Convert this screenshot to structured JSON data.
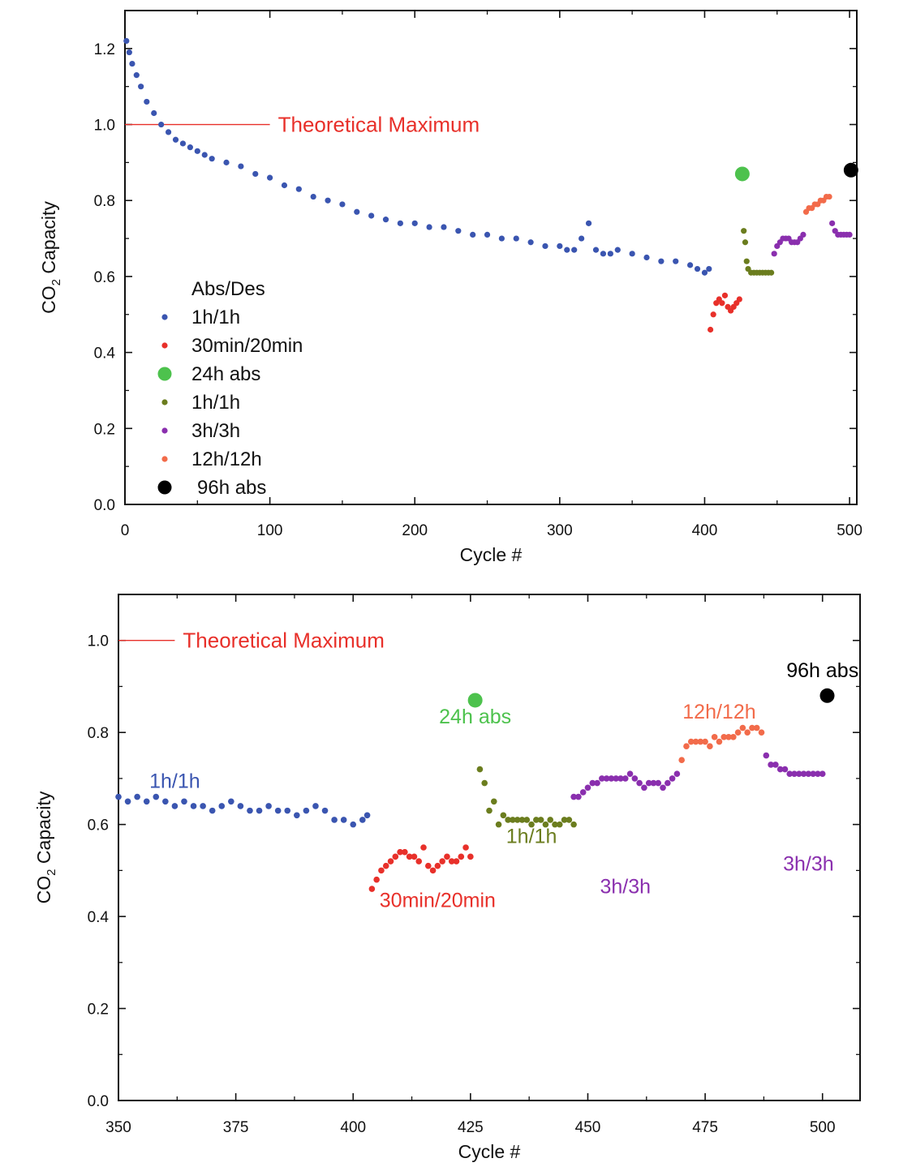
{
  "charts": [
    {
      "type": "scatter",
      "xlim": [
        0,
        505
      ],
      "ylim": [
        0,
        1.3
      ],
      "xticks": [
        0,
        100,
        200,
        300,
        400,
        500
      ],
      "xtick_labels": [
        "0",
        "100",
        "200",
        "300",
        "400",
        "500"
      ],
      "yticks": [
        0,
        0.2,
        0.4,
        0.6,
        0.8,
        1.0,
        1.2
      ],
      "ytick_labels": [
        "0.0",
        "0.2",
        "0.4",
        "0.6",
        "0.8",
        "1.0",
        "1.2"
      ],
      "xlabel": "Cycle #",
      "ylabel_main": "CO",
      "ylabel_sub": "2",
      "ylabel_rest": " Capacity",
      "reference_line": {
        "y": 1.0,
        "x_end": 100,
        "label": "Theoretical Maximum"
      },
      "legend": {
        "title": "Abs/Des",
        "placement": "lower-left",
        "entries": [
          {
            "label": "1h/1h",
            "color": "#3a55b0",
            "marker": "small"
          },
          {
            "label": "30min/20min",
            "color": "#e8302a",
            "marker": "small"
          },
          {
            "label": "24h abs",
            "color": "#4dc24d",
            "marker": "large"
          },
          {
            "label": "1h/1h",
            "color": "#6b7d1e",
            "marker": "small"
          },
          {
            "label": "3h/3h",
            "color": "#8a2fae",
            "marker": "small"
          },
          {
            "label": "12h/12h",
            "color": "#f26b4a",
            "marker": "small"
          },
          {
            "label": "96h abs",
            "color": "#000000",
            "marker": "large"
          }
        ]
      },
      "annotations": []
    },
    {
      "type": "scatter",
      "xlim": [
        350,
        508
      ],
      "ylim": [
        0,
        1.1
      ],
      "xticks": [
        350,
        375,
        400,
        425,
        450,
        475,
        500
      ],
      "xtick_labels": [
        "350",
        "375",
        "400",
        "425",
        "450",
        "475",
        "500"
      ],
      "yticks": [
        0,
        0.2,
        0.4,
        0.6,
        0.8,
        1.0
      ],
      "ytick_labels": [
        "0.0",
        "0.2",
        "0.4",
        "0.6",
        "0.8",
        "1.0"
      ],
      "xlabel": "Cycle #",
      "ylabel_main": "CO",
      "ylabel_sub": "2",
      "ylabel_rest": " Capacity",
      "reference_line": {
        "y": 1.0,
        "x_end": 362,
        "label": "Theoretical Maximum"
      },
      "legend": null,
      "annotations": [
        {
          "text": "1h/1h",
          "x": 362,
          "y": 0.68,
          "color": "#3a55b0"
        },
        {
          "text": "30min/20min",
          "x": 418,
          "y": 0.42,
          "color": "#e8302a"
        },
        {
          "text": "24h abs",
          "x": 426,
          "y": 0.82,
          "color": "#4dc24d"
        },
        {
          "text": "1h/1h",
          "x": 438,
          "y": 0.56,
          "color": "#6b7d1e"
        },
        {
          "text": "3h/3h",
          "x": 458,
          "y": 0.45,
          "color": "#8a2fae"
        },
        {
          "text": "12h/12h",
          "x": 478,
          "y": 0.83,
          "color": "#f26b4a"
        },
        {
          "text": "3h/3h",
          "x": 497,
          "y": 0.5,
          "color": "#8a2fae"
        },
        {
          "text": "96h abs",
          "x": 500,
          "y": 0.92,
          "color": "#000000"
        }
      ]
    }
  ],
  "chart_data": [
    {
      "type": "scatter",
      "xlabel": "Cycle #",
      "ylabel": "CO2 Capacity",
      "xlim": [
        0,
        505
      ],
      "ylim": [
        0,
        1.3
      ],
      "grid": false,
      "series": [
        {
          "name": "1h/1h",
          "color": "#3a55b0",
          "size": "small",
          "x": [
            1,
            3,
            5,
            8,
            11,
            15,
            20,
            25,
            30,
            35,
            40,
            45,
            50,
            55,
            60,
            70,
            80,
            90,
            100,
            110,
            120,
            130,
            140,
            150,
            160,
            170,
            180,
            190,
            200,
            210,
            220,
            230,
            240,
            250,
            260,
            270,
            280,
            290,
            300,
            305,
            310,
            315,
            320,
            325,
            330,
            335,
            340,
            350,
            360,
            370,
            380,
            390,
            395,
            400,
            403
          ],
          "y": [
            1.22,
            1.19,
            1.16,
            1.13,
            1.1,
            1.06,
            1.03,
            1.0,
            0.98,
            0.96,
            0.95,
            0.94,
            0.93,
            0.92,
            0.91,
            0.9,
            0.89,
            0.87,
            0.86,
            0.84,
            0.83,
            0.81,
            0.8,
            0.79,
            0.77,
            0.76,
            0.75,
            0.74,
            0.74,
            0.73,
            0.73,
            0.72,
            0.71,
            0.71,
            0.7,
            0.7,
            0.69,
            0.68,
            0.68,
            0.67,
            0.67,
            0.7,
            0.74,
            0.67,
            0.66,
            0.66,
            0.67,
            0.66,
            0.65,
            0.64,
            0.64,
            0.63,
            0.62,
            0.61,
            0.62
          ]
        },
        {
          "name": "30min/20min",
          "color": "#e8302a",
          "size": "small",
          "x": [
            404,
            406,
            408,
            410,
            412,
            414,
            416,
            418,
            420,
            422,
            424
          ],
          "y": [
            0.46,
            0.5,
            0.53,
            0.54,
            0.53,
            0.55,
            0.52,
            0.51,
            0.52,
            0.53,
            0.54
          ]
        },
        {
          "name": "24h abs",
          "color": "#4dc24d",
          "size": "large",
          "x": [
            426
          ],
          "y": [
            0.87
          ]
        },
        {
          "name": "1h/1h",
          "color": "#6b7d1e",
          "size": "small",
          "x": [
            427,
            428,
            429,
            430,
            432,
            434,
            436,
            438,
            440,
            442,
            444,
            446
          ],
          "y": [
            0.72,
            0.69,
            0.64,
            0.62,
            0.61,
            0.61,
            0.61,
            0.61,
            0.61,
            0.61,
            0.61,
            0.61
          ]
        },
        {
          "name": "3h/3h",
          "color": "#8a2fae",
          "size": "small",
          "x": [
            448,
            450,
            452,
            454,
            456,
            458,
            460,
            462,
            464,
            466,
            468
          ],
          "y": [
            0.66,
            0.68,
            0.69,
            0.7,
            0.7,
            0.7,
            0.69,
            0.69,
            0.69,
            0.7,
            0.71
          ]
        },
        {
          "name": "12h/12h",
          "color": "#f26b4a",
          "size": "small",
          "x": [
            470,
            472,
            474,
            476,
            478,
            480,
            482,
            484,
            486
          ],
          "y": [
            0.77,
            0.78,
            0.78,
            0.79,
            0.79,
            0.8,
            0.8,
            0.81,
            0.81
          ]
        },
        {
          "name": "3h/3h",
          "color": "#8a2fae",
          "size": "small",
          "x": [
            488,
            490,
            492,
            494,
            496,
            498,
            500
          ],
          "y": [
            0.74,
            0.72,
            0.71,
            0.71,
            0.71,
            0.71,
            0.71
          ]
        },
        {
          "name": "96h abs",
          "color": "#000000",
          "size": "large",
          "x": [
            501
          ],
          "y": [
            0.88
          ]
        }
      ]
    },
    {
      "type": "scatter",
      "xlabel": "Cycle #",
      "ylabel": "CO2 Capacity",
      "xlim": [
        350,
        508
      ],
      "ylim": [
        0,
        1.1
      ],
      "grid": false,
      "series": [
        {
          "name": "1h/1h",
          "color": "#3a55b0",
          "size": "small",
          "x": [
            350,
            352,
            354,
            356,
            358,
            360,
            362,
            364,
            366,
            368,
            370,
            372,
            374,
            376,
            378,
            380,
            382,
            384,
            386,
            388,
            390,
            392,
            394,
            396,
            398,
            400,
            402,
            403
          ],
          "y": [
            0.66,
            0.65,
            0.66,
            0.65,
            0.66,
            0.65,
            0.64,
            0.65,
            0.64,
            0.64,
            0.63,
            0.64,
            0.65,
            0.64,
            0.63,
            0.63,
            0.64,
            0.63,
            0.63,
            0.62,
            0.63,
            0.64,
            0.63,
            0.61,
            0.61,
            0.6,
            0.61,
            0.62
          ]
        },
        {
          "name": "30min/20min",
          "color": "#e8302a",
          "size": "small",
          "x": [
            404,
            405,
            406,
            407,
            408,
            409,
            410,
            411,
            412,
            413,
            414,
            415,
            416,
            417,
            418,
            419,
            420,
            421,
            422,
            423,
            424,
            425
          ],
          "y": [
            0.46,
            0.48,
            0.5,
            0.51,
            0.52,
            0.53,
            0.54,
            0.54,
            0.53,
            0.53,
            0.52,
            0.55,
            0.51,
            0.5,
            0.51,
            0.52,
            0.53,
            0.52,
            0.52,
            0.53,
            0.55,
            0.53
          ]
        },
        {
          "name": "24h abs",
          "color": "#4dc24d",
          "size": "large",
          "x": [
            426
          ],
          "y": [
            0.87
          ]
        },
        {
          "name": "1h/1h",
          "color": "#6b7d1e",
          "size": "small",
          "x": [
            427,
            428,
            429,
            430,
            431,
            432,
            433,
            434,
            435,
            436,
            437,
            438,
            439,
            440,
            441,
            442,
            443,
            444,
            445,
            446,
            447
          ],
          "y": [
            0.72,
            0.69,
            0.63,
            0.65,
            0.6,
            0.62,
            0.61,
            0.61,
            0.61,
            0.61,
            0.61,
            0.6,
            0.61,
            0.61,
            0.6,
            0.61,
            0.6,
            0.6,
            0.61,
            0.61,
            0.6
          ]
        },
        {
          "name": "3h/3h",
          "color": "#8a2fae",
          "size": "small",
          "x": [
            447,
            448,
            449,
            450,
            451,
            452,
            453,
            454,
            455,
            456,
            457,
            458,
            459,
            460,
            461,
            462,
            463,
            464,
            465,
            466,
            467,
            468,
            469
          ],
          "y": [
            0.66,
            0.66,
            0.67,
            0.68,
            0.69,
            0.69,
            0.7,
            0.7,
            0.7,
            0.7,
            0.7,
            0.7,
            0.71,
            0.7,
            0.69,
            0.68,
            0.69,
            0.69,
            0.69,
            0.68,
            0.69,
            0.7,
            0.71
          ]
        },
        {
          "name": "12h/12h",
          "color": "#f26b4a",
          "size": "small",
          "x": [
            470,
            471,
            472,
            473,
            474,
            475,
            476,
            477,
            478,
            479,
            480,
            481,
            482,
            483,
            484,
            485,
            486,
            487
          ],
          "y": [
            0.74,
            0.77,
            0.78,
            0.78,
            0.78,
            0.78,
            0.77,
            0.79,
            0.78,
            0.79,
            0.79,
            0.79,
            0.8,
            0.81,
            0.8,
            0.81,
            0.81,
            0.8
          ]
        },
        {
          "name": "3h/3h",
          "color": "#8a2fae",
          "size": "small",
          "x": [
            488,
            489,
            490,
            491,
            492,
            493,
            494,
            495,
            496,
            497,
            498,
            499,
            500
          ],
          "y": [
            0.75,
            0.73,
            0.73,
            0.72,
            0.72,
            0.71,
            0.71,
            0.71,
            0.71,
            0.71,
            0.71,
            0.71,
            0.71
          ]
        },
        {
          "name": "96h abs",
          "color": "#000000",
          "size": "large",
          "x": [
            501
          ],
          "y": [
            0.88
          ]
        }
      ]
    }
  ]
}
